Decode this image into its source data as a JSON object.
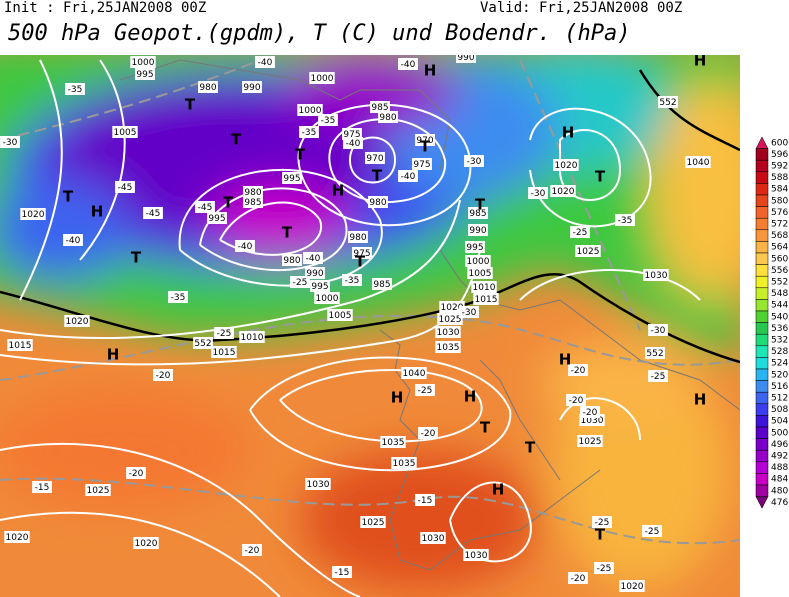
{
  "header": {
    "init": "Init : Fri,25JAN2008 00Z",
    "valid": "Valid: Fri,25JAN2008 00Z",
    "title": "500 hPa Geopot.(gpdm), T (C) und Bodendr. (hPa)"
  },
  "colorbar": {
    "levels": [
      600,
      596,
      592,
      588,
      584,
      580,
      576,
      572,
      568,
      564,
      560,
      556,
      552,
      548,
      544,
      540,
      536,
      532,
      528,
      524,
      520,
      516,
      512,
      508,
      504,
      500,
      496,
      492,
      488,
      484,
      480,
      476
    ],
    "colors": [
      "#d4145a",
      "#a0001e",
      "#b4001e",
      "#c80a14",
      "#dc2814",
      "#e6461e",
      "#f0642a",
      "#f47d32",
      "#f8963c",
      "#fab446",
      "#fcc850",
      "#fce13c",
      "#f0f028",
      "#c8f028",
      "#96e632",
      "#50d232",
      "#28c850",
      "#1edc78",
      "#1ee6b4",
      "#1edcdc",
      "#28b4f0",
      "#3c8cf0",
      "#3c64f0",
      "#3c3cf0",
      "#3c14dc",
      "#5a00c8",
      "#7800c8",
      "#9600c8",
      "#b400d2",
      "#c800c8",
      "#a000a0",
      "#780078"
    ]
  },
  "pressure_labels": [
    1000,
    995,
    980,
    990,
    1005,
    1000,
    995,
    985,
    980,
    975,
    970,
    975,
    970,
    980,
    980,
    985,
    995,
    1020,
    980,
    975,
    980,
    990,
    995,
    985,
    1000,
    1005,
    985,
    990,
    995,
    1000,
    1005,
    1010,
    1015,
    1020,
    1025,
    1030,
    1035,
    1010,
    1015,
    1020,
    1015,
    1040,
    1035,
    1035,
    1030,
    1025,
    1020,
    1020,
    1025,
    1030,
    1030,
    1020,
    1020,
    1025,
    1030,
    1040,
    1030,
    1025,
    1020,
    990,
    1000
  ],
  "temperature_labels": [
    -40,
    -35,
    -30,
    -35,
    -40,
    -45,
    -45,
    -45,
    -40,
    -40,
    -40,
    -35,
    -35,
    -30,
    -30,
    -35,
    -25,
    -40,
    -40,
    -25,
    -20,
    -30,
    -25,
    -20,
    -20,
    -20,
    -20,
    -15,
    -20,
    -15,
    -15,
    -20,
    -25,
    -25,
    -25,
    -30,
    -25,
    -20,
    -35,
    -25
  ],
  "contour_labels": [
    552,
    552,
    552
  ],
  "centers": [
    "H",
    "H",
    "T",
    "T",
    "T",
    "T",
    "T",
    "H",
    "H",
    "T",
    "T",
    "H",
    "T",
    "T",
    "T",
    "H",
    "T",
    "H",
    "H",
    "T",
    "H",
    "H",
    "T",
    "T",
    "H",
    "T"
  ]
}
